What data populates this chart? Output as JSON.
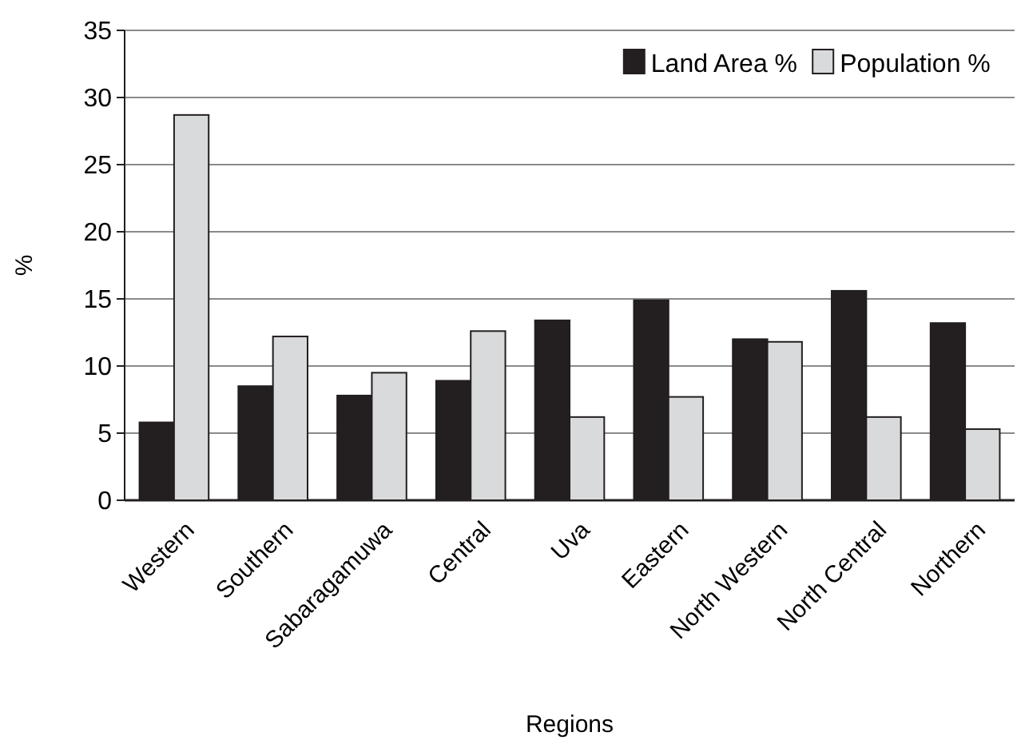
{
  "chart_data": {
    "type": "bar",
    "xlabel": "Regions",
    "ylabel": "%",
    "categories": [
      "Western",
      "Southern",
      "Sabaragamuwa",
      "Central",
      "Uva",
      "Eastern",
      "North Western",
      "North Central",
      "Northern"
    ],
    "series": [
      {
        "name": "Land Area %",
        "color": "#231f20",
        "values": [
          5.8,
          8.5,
          7.8,
          8.9,
          13.4,
          14.9,
          12.0,
          15.6,
          13.2
        ]
      },
      {
        "name": "Population %",
        "color": "#d9dadc",
        "values": [
          28.7,
          12.2,
          9.5,
          12.6,
          6.2,
          7.7,
          11.8,
          6.2,
          5.3
        ]
      }
    ],
    "ylim": [
      0,
      35
    ],
    "yticks": [
      0,
      5,
      10,
      15,
      20,
      25,
      30,
      35
    ],
    "grid": "y",
    "legend": "top right"
  }
}
